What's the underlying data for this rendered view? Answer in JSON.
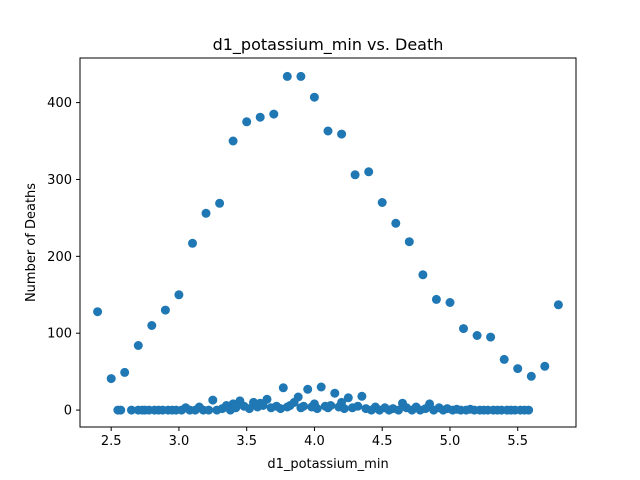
{
  "chart_data": {
    "type": "scatter",
    "title": "d1_potassium_min vs. Death",
    "xlabel": "d1_potassium_min",
    "ylabel": "Number of Deaths",
    "xlim": [
      2.27,
      5.93
    ],
    "ylim": [
      -22,
      458
    ],
    "xticks": [
      2.5,
      3.0,
      3.5,
      4.0,
      4.5,
      5.0,
      5.5
    ],
    "xtick_labels": [
      "2.5",
      "3.0",
      "3.5",
      "4.0",
      "4.5",
      "5.0",
      "5.5"
    ],
    "yticks": [
      0,
      100,
      200,
      300,
      400
    ],
    "ytick_labels": [
      "0",
      "100",
      "200",
      "300",
      "400"
    ],
    "grid": false,
    "marker_color": "#1f77b4",
    "series": [
      {
        "points": [
          [
            2.4,
            128
          ],
          [
            2.5,
            41
          ],
          [
            2.6,
            49
          ],
          [
            2.7,
            84
          ],
          [
            2.8,
            110
          ],
          [
            2.9,
            130
          ],
          [
            3.0,
            150
          ],
          [
            3.1,
            217
          ],
          [
            3.2,
            256
          ],
          [
            3.3,
            269
          ],
          [
            3.4,
            350
          ],
          [
            3.5,
            375
          ],
          [
            3.6,
            381
          ],
          [
            3.7,
            385
          ],
          [
            3.8,
            434
          ],
          [
            3.9,
            434
          ],
          [
            4.0,
            407
          ],
          [
            4.1,
            363
          ],
          [
            4.2,
            359
          ],
          [
            4.3,
            306
          ],
          [
            4.4,
            310
          ],
          [
            4.5,
            270
          ],
          [
            4.6,
            243
          ],
          [
            4.7,
            219
          ],
          [
            4.8,
            176
          ],
          [
            4.9,
            144
          ],
          [
            5.0,
            140
          ],
          [
            5.1,
            106
          ],
          [
            5.2,
            97
          ],
          [
            5.3,
            95
          ],
          [
            5.4,
            66
          ],
          [
            5.5,
            54
          ],
          [
            5.6,
            44
          ],
          [
            5.7,
            57
          ],
          [
            5.8,
            137
          ],
          [
            3.77,
            29
          ],
          [
            3.95,
            27
          ],
          [
            4.05,
            30
          ],
          [
            4.15,
            22
          ],
          [
            4.25,
            16
          ],
          [
            4.35,
            18
          ],
          [
            3.25,
            13
          ],
          [
            3.65,
            14
          ],
          [
            3.88,
            17
          ],
          [
            4.65,
            9
          ],
          [
            4.85,
            8
          ],
          [
            3.4,
            8
          ],
          [
            3.55,
            10
          ],
          [
            4.2,
            10
          ],
          [
            3.45,
            12
          ],
          [
            3.6,
            9
          ],
          [
            4.0,
            8
          ],
          [
            3.85,
            10
          ],
          [
            2.55,
            0
          ],
          [
            2.57,
            0
          ],
          [
            2.65,
            0
          ],
          [
            2.7,
            0
          ],
          [
            2.73,
            0
          ],
          [
            2.75,
            0
          ],
          [
            2.78,
            0
          ],
          [
            2.82,
            0
          ],
          [
            2.85,
            0
          ],
          [
            2.88,
            0
          ],
          [
            2.92,
            0
          ],
          [
            2.95,
            0
          ],
          [
            2.98,
            0
          ],
          [
            3.02,
            0
          ],
          [
            3.05,
            3
          ],
          [
            3.08,
            0
          ],
          [
            3.12,
            0
          ],
          [
            3.15,
            4
          ],
          [
            3.18,
            0
          ],
          [
            3.22,
            0
          ],
          [
            3.28,
            0
          ],
          [
            3.32,
            2
          ],
          [
            3.35,
            6
          ],
          [
            3.38,
            0
          ],
          [
            3.42,
            3
          ],
          [
            3.48,
            5
          ],
          [
            3.52,
            2
          ],
          [
            3.58,
            4
          ],
          [
            3.62,
            6
          ],
          [
            3.68,
            3
          ],
          [
            3.72,
            5
          ],
          [
            3.75,
            2
          ],
          [
            3.8,
            4
          ],
          [
            3.82,
            6
          ],
          [
            3.9,
            3
          ],
          [
            3.92,
            5
          ],
          [
            3.98,
            4
          ],
          [
            4.02,
            2
          ],
          [
            4.08,
            5
          ],
          [
            4.1,
            3
          ],
          [
            4.12,
            6
          ],
          [
            4.18,
            4
          ],
          [
            4.22,
            2
          ],
          [
            4.28,
            3
          ],
          [
            4.32,
            5
          ],
          [
            4.38,
            2
          ],
          [
            4.42,
            0
          ],
          [
            4.45,
            4
          ],
          [
            4.48,
            0
          ],
          [
            4.52,
            3
          ],
          [
            4.55,
            0
          ],
          [
            4.58,
            2
          ],
          [
            4.62,
            0
          ],
          [
            4.68,
            3
          ],
          [
            4.72,
            0
          ],
          [
            4.75,
            4
          ],
          [
            4.78,
            0
          ],
          [
            4.82,
            2
          ],
          [
            4.88,
            0
          ],
          [
            4.92,
            3
          ],
          [
            4.95,
            0
          ],
          [
            4.98,
            2
          ],
          [
            5.02,
            0
          ],
          [
            5.05,
            1
          ],
          [
            5.08,
            0
          ],
          [
            5.12,
            0
          ],
          [
            5.15,
            1
          ],
          [
            5.18,
            0
          ],
          [
            5.22,
            0
          ],
          [
            5.25,
            0
          ],
          [
            5.28,
            0
          ],
          [
            5.32,
            0
          ],
          [
            5.35,
            0
          ],
          [
            5.38,
            0
          ],
          [
            5.42,
            0
          ],
          [
            5.45,
            0
          ],
          [
            5.48,
            0
          ],
          [
            5.52,
            0
          ],
          [
            5.55,
            0
          ],
          [
            5.58,
            0
          ]
        ]
      }
    ]
  }
}
